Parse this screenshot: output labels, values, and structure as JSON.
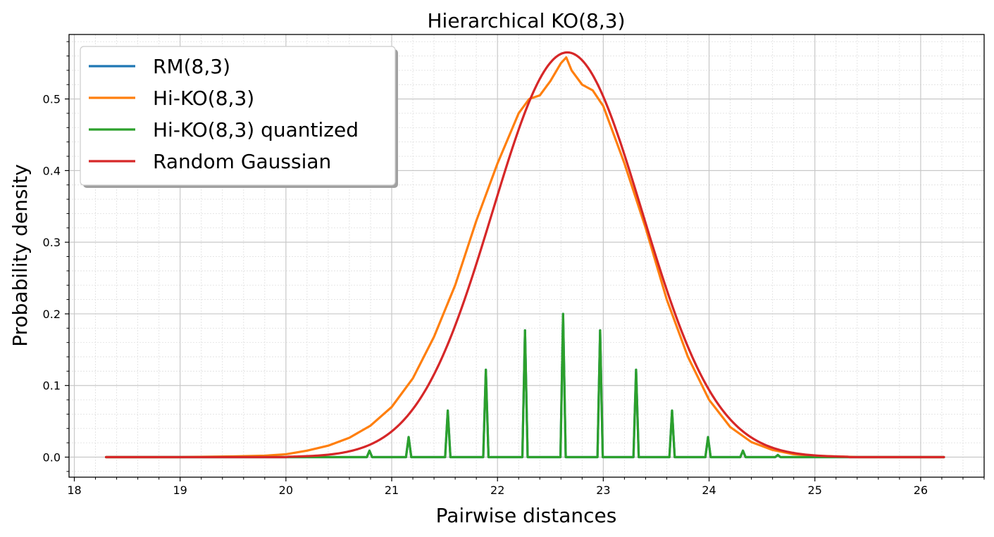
{
  "chart_data": {
    "type": "line",
    "title": "Hierarchical KO(8,3)",
    "xlabel": "Pairwise distances",
    "ylabel": "Probability density",
    "xlim": [
      17.95,
      26.6
    ],
    "ylim": [
      -0.028,
      0.59
    ],
    "xticks": [
      18,
      19,
      20,
      21,
      22,
      23,
      24,
      25,
      26
    ],
    "yticks": [
      0.0,
      0.1,
      0.2,
      0.3,
      0.4,
      0.5
    ],
    "xtick_labels": [
      "18",
      "19",
      "20",
      "21",
      "22",
      "23",
      "24",
      "25",
      "26"
    ],
    "ytick_labels": [
      "0.0",
      "0.1",
      "0.2",
      "0.3",
      "0.4",
      "0.5"
    ],
    "grid": "major and minor",
    "legend_position": "top-left",
    "series": [
      {
        "name": "RM(8,3)",
        "color": "#1f77b4",
        "kind": "spikes",
        "x": [
          20.35,
          20.79,
          21.16,
          21.53,
          21.89,
          22.26,
          22.62,
          22.97,
          23.31,
          23.65,
          23.99,
          24.32,
          24.65
        ],
        "y": [
          0.0,
          0.009,
          0.028,
          0.065,
          0.122,
          0.177,
          0.2,
          0.177,
          0.122,
          0.065,
          0.028,
          0.009,
          0.003
        ],
        "range": [
          18.3,
          26.22
        ]
      },
      {
        "name": "Hi-KO(8,3)",
        "color": "#ff7f0e",
        "kind": "curve",
        "x": [
          18.3,
          19.0,
          19.5,
          19.8,
          20.0,
          20.2,
          20.4,
          20.6,
          20.8,
          21.0,
          21.2,
          21.4,
          21.6,
          21.8,
          22.0,
          22.2,
          22.3,
          22.4,
          22.5,
          22.6,
          22.65,
          22.7,
          22.8,
          22.9,
          23.0,
          23.2,
          23.4,
          23.6,
          23.8,
          24.0,
          24.2,
          24.4,
          24.6,
          24.8,
          25.0,
          25.4,
          26.22
        ],
        "y": [
          0.0,
          0.0,
          0.001,
          0.002,
          0.004,
          0.009,
          0.016,
          0.027,
          0.044,
          0.07,
          0.11,
          0.168,
          0.24,
          0.33,
          0.41,
          0.48,
          0.5,
          0.505,
          0.525,
          0.55,
          0.558,
          0.54,
          0.52,
          0.512,
          0.49,
          0.41,
          0.32,
          0.22,
          0.14,
          0.08,
          0.042,
          0.021,
          0.01,
          0.004,
          0.002,
          0.0,
          0.0
        ]
      },
      {
        "name": "Hi-KO(8,3) quantized",
        "color": "#2ca02c",
        "kind": "spikes",
        "x": [
          20.35,
          20.79,
          21.16,
          21.53,
          21.89,
          22.26,
          22.62,
          22.97,
          23.31,
          23.65,
          23.99,
          24.32,
          24.65
        ],
        "y": [
          0.0,
          0.009,
          0.028,
          0.065,
          0.122,
          0.177,
          0.2,
          0.177,
          0.122,
          0.065,
          0.028,
          0.009,
          0.003
        ],
        "range": [
          18.3,
          26.22
        ]
      },
      {
        "name": "Random Gaussian",
        "color": "#d62728",
        "kind": "gaussian",
        "mean": 22.66,
        "std": 0.707,
        "peak": 0.565,
        "range": [
          18.3,
          26.22
        ]
      }
    ]
  }
}
